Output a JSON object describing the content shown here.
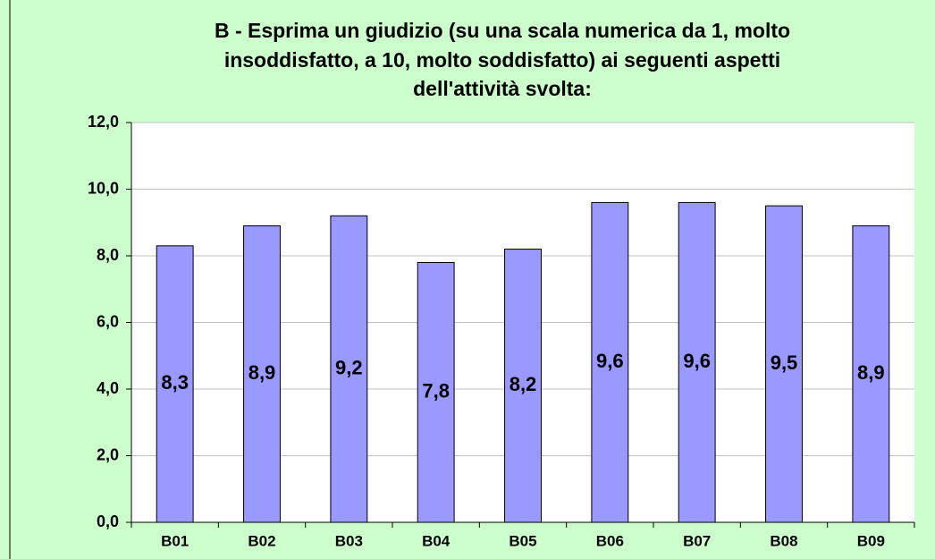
{
  "chart_data": {
    "type": "bar",
    "title": [
      "B - Esprima un giudizio (su una scala numerica da 1, molto",
      "insoddisfatto, a 10, molto soddisfatto) ai seguenti aspetti",
      "dell'attività svolta:"
    ],
    "categories": [
      "B01",
      "B02",
      "B03",
      "B04",
      "B05",
      "B06",
      "B07",
      "B08",
      "B09"
    ],
    "values": [
      8.3,
      8.9,
      9.2,
      7.8,
      8.2,
      9.6,
      9.6,
      9.5,
      8.9
    ],
    "value_labels": [
      "8,3",
      "8,9",
      "9,2",
      "7,8",
      "8,2",
      "9,6",
      "9,6",
      "9,5",
      "8,9"
    ],
    "color": "#9999ff",
    "ylim": [
      0,
      12
    ],
    "yticks": [
      {
        "value": 0,
        "label": "0,0"
      },
      {
        "value": 2,
        "label": "2,0"
      },
      {
        "value": 4,
        "label": "4,0"
      },
      {
        "value": 6,
        "label": "6,0"
      },
      {
        "value": 8,
        "label": "8,0"
      },
      {
        "value": 10,
        "label": "10,0"
      },
      {
        "value": 12,
        "label": "12,0"
      }
    ],
    "grid": true
  }
}
